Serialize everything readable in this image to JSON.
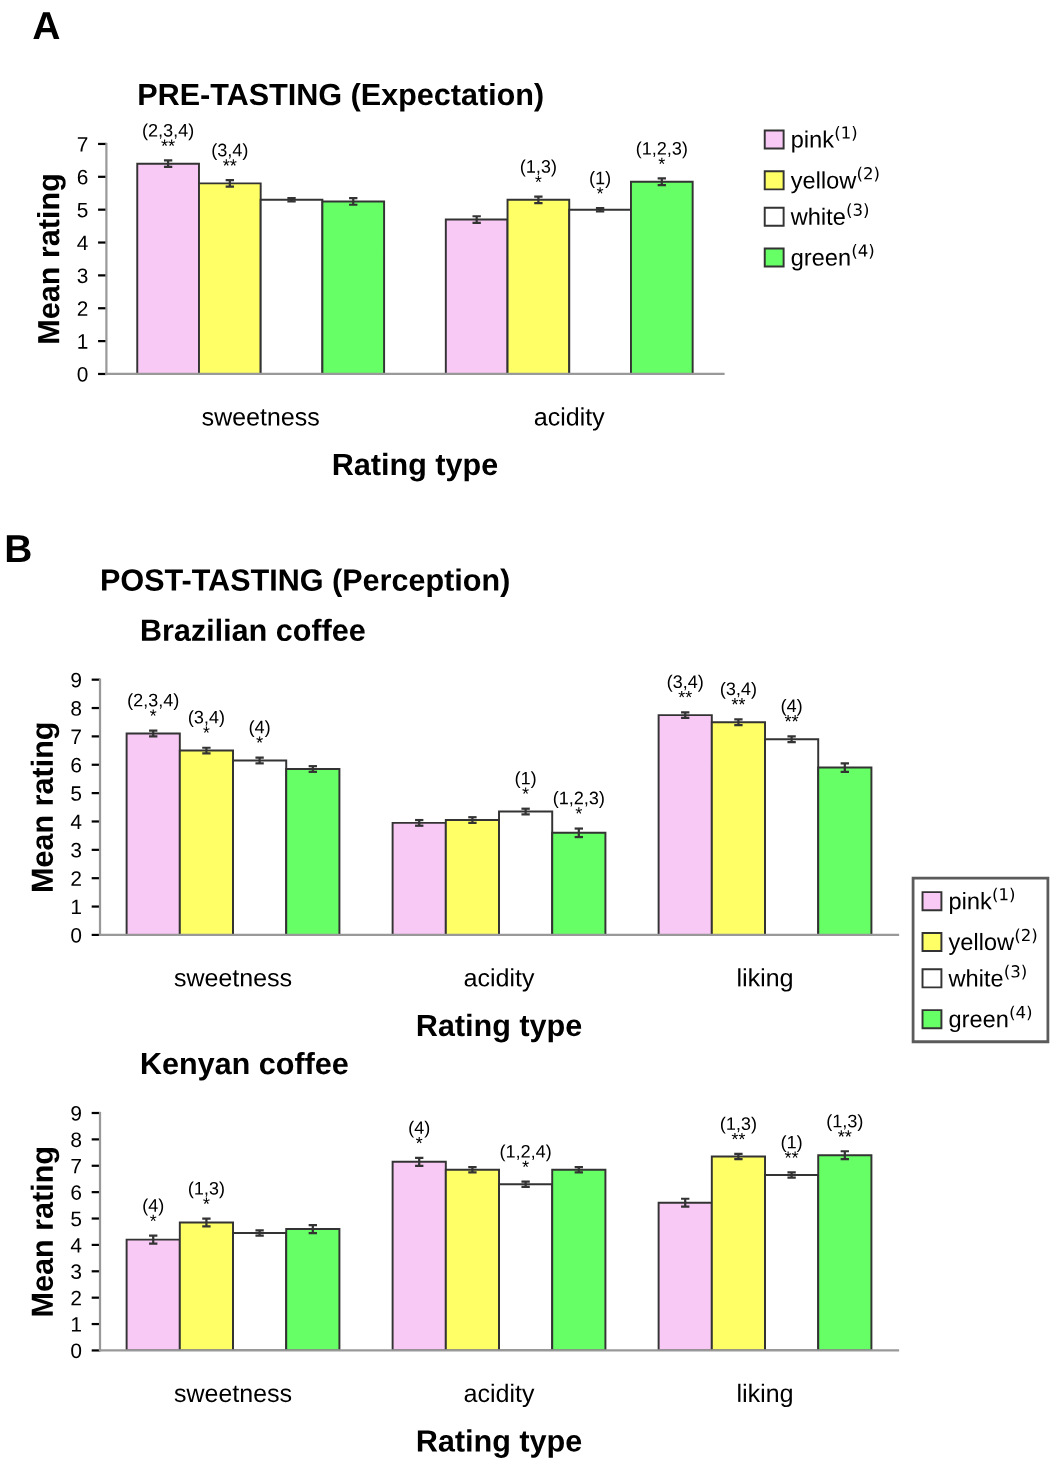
{
  "chart_data": [
    {
      "type": "bar",
      "title": "PRE-TASTING (Expectation)",
      "xlabel": "Rating type",
      "ylabel": "Mean rating",
      "categories": [
        "sweetness",
        "acidity"
      ],
      "ylim": [
        0,
        7
      ],
      "yticks": [
        0,
        1,
        2,
        3,
        4,
        5,
        6,
        7
      ],
      "legend": "right",
      "grid": false,
      "series": [
        {
          "name": "pink$^{(1)}$",
          "color": "#f9c9f5",
          "values": [
            6.4,
            4.7
          ],
          "errors": [
            0.1,
            0.1
          ]
        },
        {
          "name": "yellow$^{(2)}$",
          "color": "#ffff66",
          "values": [
            5.8,
            5.3
          ],
          "errors": [
            0.1,
            0.1
          ]
        },
        {
          "name": "white$^{(3)}$",
          "color": "#ffffff",
          "values": [
            5.3,
            5.0
          ],
          "errors": [
            0.05,
            0.05
          ]
        },
        {
          "name": "green$^{(4)}$",
          "color": "#66ff66",
          "values": [
            5.25,
            5.85
          ],
          "errors": [
            0.1,
            0.1
          ]
        }
      ],
      "annotations": [
        "A",
        "(2,3,4)\n**",
        "(3,4)\n**",
        "(1,3)\n*",
        "(1)\n*",
        "(1,2,3)\n*"
      ]
    },
    {
      "type": "bar",
      "title": "Brazilian coffee",
      "xlabel": "Rating type",
      "ylabel": "Mean rating",
      "categories": [
        "sweetness",
        "acidity",
        "liking"
      ],
      "ylim": [
        0,
        9
      ],
      "yticks": [
        0,
        1,
        2,
        3,
        4,
        5,
        6,
        7,
        8,
        9
      ],
      "legend": "bottom right",
      "grid": false,
      "series": [
        {
          "name": "pink$^{(1)}$",
          "color": "#f9c9f5",
          "values": [
            7.1,
            3.95,
            7.75
          ],
          "errors": [
            0.1,
            0.1,
            0.1
          ]
        },
        {
          "name": "yellow$^{(2)}$",
          "color": "#ffff66",
          "values": [
            6.5,
            4.05,
            7.5
          ],
          "errors": [
            0.1,
            0.1,
            0.1
          ]
        },
        {
          "name": "white$^{(3)}$",
          "color": "#ffffff",
          "values": [
            6.15,
            4.35,
            6.9
          ],
          "errors": [
            0.1,
            0.1,
            0.1
          ]
        },
        {
          "name": "green$^{(4)}$",
          "color": "#66ff66",
          "values": [
            5.85,
            3.6,
            5.9
          ],
          "errors": [
            0.1,
            0.15,
            0.15
          ]
        }
      ],
      "annotations": [
        "B",
        "POST-TASTING (Perception)",
        "(2,3,4)\n*",
        "(3,4)\n*",
        "(4)\n*",
        "(1)\n*",
        "(1,2,3)\n*",
        "(3,4)\n**",
        "(3,4)\n**",
        "(4)\n**"
      ]
    },
    {
      "type": "bar",
      "title": "Kenyan coffee",
      "xlabel": "Rating type",
      "ylabel": "Mean rating",
      "categories": [
        "sweetness",
        "acidity",
        "liking"
      ],
      "ylim": [
        0,
        9
      ],
      "yticks": [
        0,
        1,
        2,
        3,
        4,
        5,
        6,
        7,
        8,
        9
      ],
      "grid": false,
      "series": [
        {
          "color": "#f9c9f5",
          "values": [
            4.2,
            7.15,
            5.6
          ],
          "errors": [
            0.15,
            0.15,
            0.15
          ]
        },
        {
          "color": "#ffff66",
          "values": [
            4.85,
            6.85,
            7.35
          ],
          "errors": [
            0.15,
            0.1,
            0.1
          ]
        },
        {
          "color": "#ffffff",
          "values": [
            4.45,
            6.3,
            6.65
          ],
          "errors": [
            0.1,
            0.1,
            0.1
          ]
        },
        {
          "color": "#66ff66",
          "values": [
            4.6,
            6.85,
            7.4
          ],
          "errors": [
            0.15,
            0.1,
            0.15
          ]
        }
      ],
      "annotations": [
        "(4)\n*",
        "(1,3)\n*",
        "(4)\n*",
        "(1,2,4)\n*",
        "(1,3)\n**",
        "(1)\n**",
        "(1,3)\n**"
      ]
    }
  ]
}
